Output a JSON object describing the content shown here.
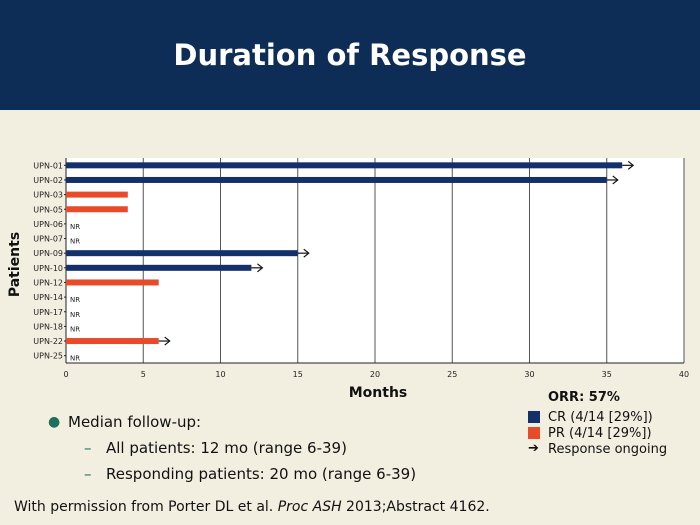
{
  "header": {
    "title": "Duration of Response"
  },
  "chart_data": {
    "type": "bar",
    "orientation": "horizontal",
    "xlabel": "Months",
    "ylabel": "Patients",
    "xlim": [
      0,
      40
    ],
    "xticks": [
      0,
      5,
      10,
      15,
      20,
      25,
      30,
      35,
      40
    ],
    "grid": "vertical",
    "colors": {
      "CR": "#14306b",
      "PR": "#e84a2a"
    },
    "rows": [
      {
        "patient": "UPN-01",
        "months": 36,
        "response": "CR",
        "ongoing": true,
        "nr_label": ""
      },
      {
        "patient": "UPN-02",
        "months": 35,
        "response": "CR",
        "ongoing": true,
        "nr_label": ""
      },
      {
        "patient": "UPN-03",
        "months": 4,
        "response": "PR",
        "ongoing": false,
        "nr_label": ""
      },
      {
        "patient": "UPN-05",
        "months": 4,
        "response": "PR",
        "ongoing": false,
        "nr_label": ""
      },
      {
        "patient": "UPN-06",
        "months": 0,
        "response": "NR",
        "ongoing": false,
        "nr_label": "NR"
      },
      {
        "patient": "UPN-07",
        "months": 0,
        "response": "NR",
        "ongoing": false,
        "nr_label": "NR"
      },
      {
        "patient": "UPN-09",
        "months": 15,
        "response": "CR",
        "ongoing": true,
        "nr_label": ""
      },
      {
        "patient": "UPN-10",
        "months": 12,
        "response": "CR",
        "ongoing": true,
        "nr_label": ""
      },
      {
        "patient": "UPN-12",
        "months": 6,
        "response": "PR",
        "ongoing": false,
        "nr_label": ""
      },
      {
        "patient": "UPN-14",
        "months": 0,
        "response": "NR",
        "ongoing": false,
        "nr_label": "NR"
      },
      {
        "patient": "UPN-17",
        "months": 0,
        "response": "NR",
        "ongoing": false,
        "nr_label": "NR"
      },
      {
        "patient": "UPN-18",
        "months": 0,
        "response": "NR",
        "ongoing": false,
        "nr_label": "NR"
      },
      {
        "patient": "UPN-22",
        "months": 6,
        "response": "PR",
        "ongoing": true,
        "nr_label": ""
      },
      {
        "patient": "UPN-25",
        "months": 0,
        "response": "NR",
        "ongoing": false,
        "nr_label": "NR"
      }
    ]
  },
  "legend": {
    "title": "ORR: 57%",
    "cr_label": "CR (4/14 [29%])",
    "pr_label": "PR (4/14 [29%])",
    "ongoing_label": "Response ongoing"
  },
  "bullets": {
    "main": "Median follow-up:",
    "sub1": "All patients: 12 mo (range 6-39)",
    "sub2": "Responding patients: 20 mo (range 6-39)"
  },
  "footer": {
    "prefix": "With permission from Porter DL et al. ",
    "journal": "Proc ASH",
    "suffix": " 2013;Abstract 4162."
  }
}
